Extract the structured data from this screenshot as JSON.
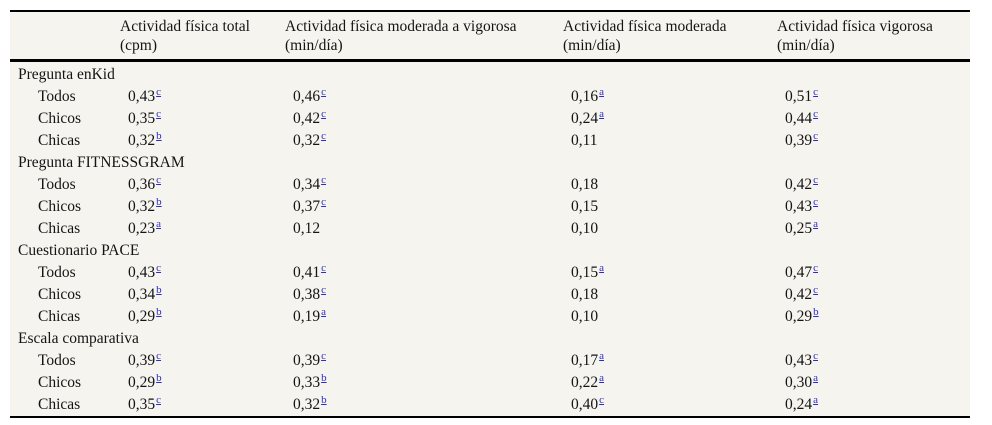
{
  "table": {
    "colors": {
      "table_background": "#f6f4ee",
      "rule_color": "#000000",
      "text_color": "#141414",
      "footnote_link_color": "#2a2acd"
    },
    "columns": [
      {
        "line1": "Actividad física total",
        "line2": "(cpm)"
      },
      {
        "line1": "Actividad física moderada a vigorosa",
        "line2": "(min/día)"
      },
      {
        "line1": "Actividad física moderada",
        "line2": "(min/día)"
      },
      {
        "line1": "Actividad física vigorosa",
        "line2": "(min/día)"
      }
    ],
    "groups": [
      {
        "label": "Pregunta enKid",
        "rows": [
          {
            "label": "Todos",
            "values": [
              {
                "v": "0,43",
                "sup": "c"
              },
              {
                "v": "0,46",
                "sup": "c"
              },
              {
                "v": "0,16",
                "sup": "a"
              },
              {
                "v": "0,51",
                "sup": "c"
              }
            ]
          },
          {
            "label": "Chicos",
            "values": [
              {
                "v": "0,35",
                "sup": "c"
              },
              {
                "v": "0,42",
                "sup": "c"
              },
              {
                "v": "0,24",
                "sup": "a"
              },
              {
                "v": "0,44",
                "sup": "c"
              }
            ]
          },
          {
            "label": "Chicas",
            "values": [
              {
                "v": "0,32",
                "sup": "b"
              },
              {
                "v": "0,32",
                "sup": "c"
              },
              {
                "v": "0,11",
                "sup": ""
              },
              {
                "v": "0,39",
                "sup": "c"
              }
            ]
          }
        ]
      },
      {
        "label": "Pregunta FITNESSGRAM",
        "rows": [
          {
            "label": "Todos",
            "values": [
              {
                "v": "0,36",
                "sup": "c"
              },
              {
                "v": "0,34",
                "sup": "c"
              },
              {
                "v": "0,18",
                "sup": ""
              },
              {
                "v": "0,42",
                "sup": "c"
              }
            ]
          },
          {
            "label": "Chicos",
            "values": [
              {
                "v": "0,32",
                "sup": "b"
              },
              {
                "v": "0,37",
                "sup": "c"
              },
              {
                "v": "0,15",
                "sup": ""
              },
              {
                "v": "0,43",
                "sup": "c"
              }
            ]
          },
          {
            "label": "Chicas",
            "values": [
              {
                "v": "0,23",
                "sup": "a"
              },
              {
                "v": "0,12",
                "sup": ""
              },
              {
                "v": "0,10",
                "sup": ""
              },
              {
                "v": "0,25",
                "sup": "a"
              }
            ]
          }
        ]
      },
      {
        "label": "Cuestionario PACE",
        "rows": [
          {
            "label": "Todos",
            "values": [
              {
                "v": "0,43",
                "sup": "c"
              },
              {
                "v": "0,41",
                "sup": "c"
              },
              {
                "v": "0,15",
                "sup": "a"
              },
              {
                "v": "0,47",
                "sup": "c"
              }
            ]
          },
          {
            "label": "Chicos",
            "values": [
              {
                "v": "0,34",
                "sup": "b"
              },
              {
                "v": "0,38",
                "sup": "c"
              },
              {
                "v": "0,18",
                "sup": ""
              },
              {
                "v": "0,42",
                "sup": "c"
              }
            ]
          },
          {
            "label": "Chicas",
            "values": [
              {
                "v": "0,29",
                "sup": "b"
              },
              {
                "v": "0,19",
                "sup": "a"
              },
              {
                "v": "0,10",
                "sup": ""
              },
              {
                "v": "0,29",
                "sup": "b"
              }
            ]
          }
        ]
      },
      {
        "label": "Escala comparativa",
        "rows": [
          {
            "label": "Todos",
            "values": [
              {
                "v": "0,39",
                "sup": "c"
              },
              {
                "v": "0,39",
                "sup": "c"
              },
              {
                "v": "0,17",
                "sup": "a"
              },
              {
                "v": "0,43",
                "sup": "c"
              }
            ]
          },
          {
            "label": "Chicos",
            "values": [
              {
                "v": "0,29",
                "sup": "b"
              },
              {
                "v": "0,33",
                "sup": "b"
              },
              {
                "v": "0,22",
                "sup": "a"
              },
              {
                "v": "0,30",
                "sup": "a"
              }
            ]
          },
          {
            "label": "Chicas",
            "values": [
              {
                "v": "0,35",
                "sup": "c"
              },
              {
                "v": "0,32",
                "sup": "b"
              },
              {
                "v": "0,40",
                "sup": "c"
              },
              {
                "v": "0,24",
                "sup": "a"
              }
            ]
          }
        ]
      }
    ]
  }
}
